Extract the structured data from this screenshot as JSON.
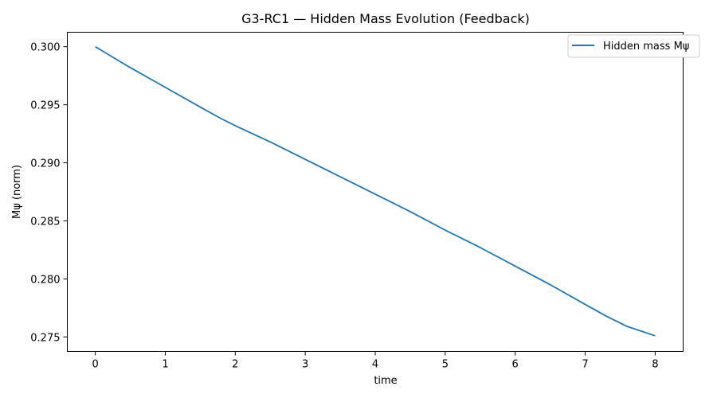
{
  "chart_data": {
    "type": "line",
    "title": "G3-RC1 — Hidden Mass Evolution (Feedback)",
    "xlabel": "time",
    "ylabel": "Mψ (norm)",
    "xlim": [
      -0.4,
      8.4
    ],
    "ylim": [
      0.27375,
      0.30125
    ],
    "xticks": [
      0,
      1,
      2,
      3,
      4,
      5,
      6,
      7,
      8
    ],
    "yticks": [
      0.275,
      0.28,
      0.285,
      0.29,
      0.295,
      0.3
    ],
    "ytick_labels": [
      "0.275",
      "0.280",
      "0.285",
      "0.290",
      "0.295",
      "0.300"
    ],
    "grid": false,
    "legend_position": "top-right",
    "series": [
      {
        "name": "Hidden mass Mψ",
        "color": "#1f77b4",
        "x": [
          0,
          0.5,
          1,
          1.5,
          1.8,
          2,
          2.5,
          3,
          3.5,
          4,
          4.5,
          5,
          5.5,
          6,
          6.5,
          7,
          7.3,
          7.6,
          8
        ],
        "y": [
          0.3,
          0.2982,
          0.2965,
          0.2948,
          0.2938,
          0.2932,
          0.2918,
          0.2903,
          0.2888,
          0.2873,
          0.2858,
          0.2842,
          0.2827,
          0.2811,
          0.2795,
          0.2778,
          0.2768,
          0.2759,
          0.2751
        ]
      }
    ]
  }
}
